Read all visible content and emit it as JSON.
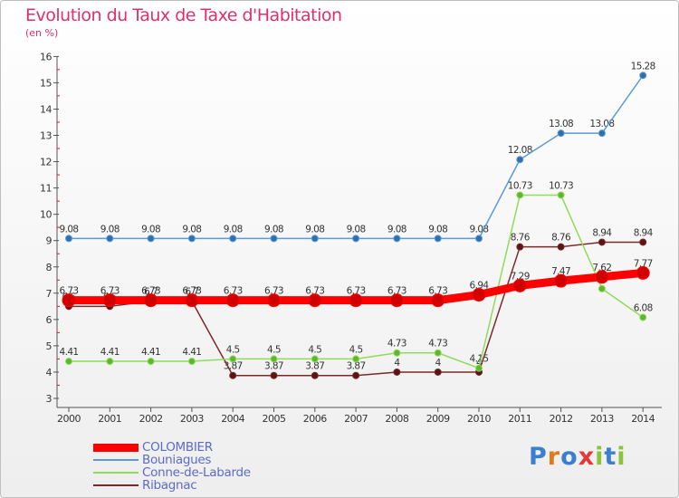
{
  "header": {
    "title": "Evolution du Taux de Taxe d'Habitation",
    "unit": "(en %)"
  },
  "logo": {
    "text": "Proxiti",
    "colors": [
      "#3a7fd0",
      "#e07a1a",
      "#3a7fd0",
      "#e03a3a",
      "#8ac43a",
      "#3a7fd0",
      "#8ac43a"
    ]
  },
  "chart_data": {
    "type": "line",
    "title": "Evolution du Taux de Taxe d'Habitation",
    "ylabel": "(en %)",
    "x": [
      "2000",
      "2001",
      "2002",
      "2003",
      "2004",
      "2005",
      "2006",
      "2007",
      "2008",
      "2009",
      "2010",
      "2011",
      "2012",
      "2013",
      "2014"
    ],
    "ylim": [
      3,
      16
    ],
    "yticks": [
      3,
      4,
      5,
      6,
      7,
      8,
      9,
      10,
      11,
      12,
      13,
      14,
      15,
      16
    ],
    "grid": false,
    "legend_position": "bottom-left",
    "series": [
      {
        "name": "COLOMBIER",
        "color": "#ff0000",
        "values": [
          6.73,
          6.73,
          6.73,
          6.73,
          6.73,
          6.73,
          6.73,
          6.73,
          6.73,
          6.73,
          6.94,
          7.29,
          7.47,
          7.62,
          7.77
        ]
      },
      {
        "name": "Bouniagues",
        "color": "#5b9bd5",
        "values": [
          9.08,
          9.08,
          9.08,
          9.08,
          9.08,
          9.08,
          9.08,
          9.08,
          9.08,
          9.08,
          9.08,
          12.08,
          13.08,
          13.08,
          15.28
        ]
      },
      {
        "name": "Conne-de-Labarde",
        "color": "#8edc5a",
        "values": [
          4.41,
          4.41,
          4.41,
          4.41,
          4.5,
          4.5,
          4.5,
          4.5,
          4.73,
          4.73,
          4.15,
          10.73,
          10.73,
          7.17,
          6.08
        ]
      },
      {
        "name": "Ribagnac",
        "color": "#7b2a2a",
        "values": [
          6.5,
          6.5,
          6.7,
          6.7,
          3.87,
          3.87,
          3.87,
          3.87,
          4,
          4,
          4,
          8.76,
          8.76,
          8.94,
          8.94
        ]
      }
    ],
    "data_labels": {
      "COLOMBIER": [
        "6.73",
        "6.73",
        "6.73",
        "6.73",
        "6.73",
        "6.73",
        "6.73",
        "6.73",
        "6.73",
        "6.73",
        "6.94",
        "7.29",
        "7.47",
        "7.62",
        "7.77"
      ],
      "Bouniagues": [
        "9.08",
        "9.08",
        "9.08",
        "9.08",
        "9.08",
        "9.08",
        "9.08",
        "9.08",
        "9.08",
        "9.08",
        "9.08",
        "12.08",
        "13.08",
        "13.08",
        "15.28"
      ],
      "Conne-de-Labarde": [
        "4.41",
        "4.41",
        "4.41",
        "4.41",
        "4.5",
        "4.5",
        "4.5",
        "4.5",
        "4.73",
        "4.73",
        "4.15",
        "10.73",
        "10.73",
        "",
        "6.08"
      ],
      "Ribagnac": [
        "6.5",
        "6.5",
        "6.7",
        "6.7",
        "3.87",
        "3.87",
        "3.87",
        "3.87",
        "4",
        "4",
        "4",
        "8.76",
        "8.76",
        "8.94",
        "8.94"
      ]
    }
  }
}
